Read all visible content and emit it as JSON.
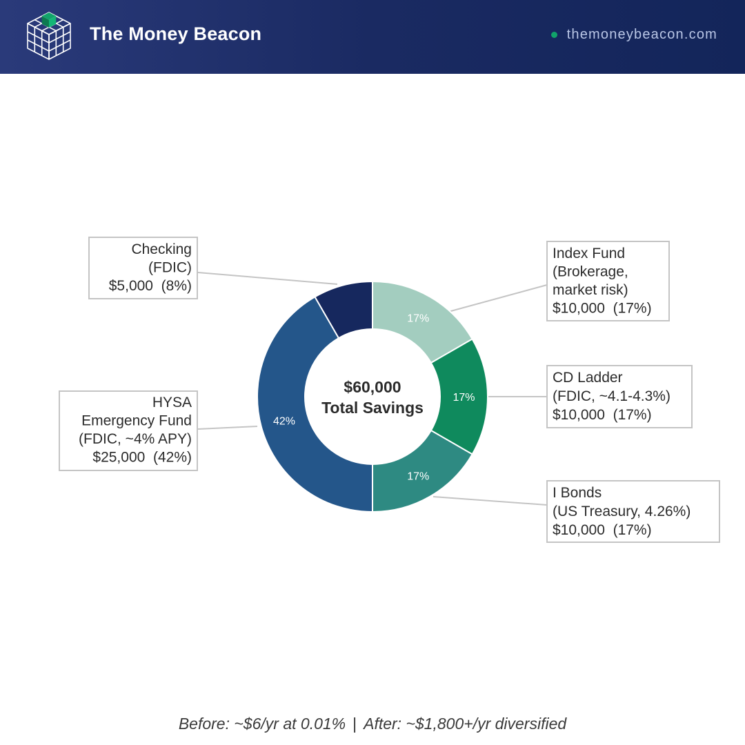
{
  "header": {
    "brand": "The Money Beacon",
    "site": "themoneybeacon.com",
    "colors": {
      "accent": "#11a36a",
      "background": "#1a2a62"
    }
  },
  "chart_data": {
    "type": "pie",
    "variant": "donut",
    "center_label": [
      "$60,000",
      "Total Savings"
    ],
    "slices": [
      {
        "id": "index-fund",
        "value": 10000,
        "percent_label": "17%",
        "color": "#a3cdbf",
        "label_lines": [
          "Index Fund",
          "(Brokerage,",
          "market risk)",
          "$10,000  (17%)"
        ],
        "label_align": "left",
        "label_side": "right"
      },
      {
        "id": "cd-ladder",
        "value": 10000,
        "percent_label": "17%",
        "color": "#0f8a5d",
        "label_lines": [
          "CD Ladder",
          "(FDIC, ~4.1-4.3%)",
          "$10,000  (17%)"
        ],
        "label_align": "left",
        "label_side": "right"
      },
      {
        "id": "i-bonds",
        "value": 10000,
        "percent_label": "17%",
        "color": "#2e8a82",
        "label_lines": [
          "I Bonds",
          "(US Treasury, 4.26%)",
          "$10,000  (17%)"
        ],
        "label_align": "left",
        "label_side": "right"
      },
      {
        "id": "hysa",
        "value": 25000,
        "percent_label": "42%",
        "color": "#24568a",
        "label_lines": [
          "HYSA",
          "Emergency Fund",
          "(FDIC, ~4% APY)",
          "$25,000  (42%)"
        ],
        "label_align": "right",
        "label_side": "left"
      },
      {
        "id": "checking",
        "value": 5000,
        "percent_label": "",
        "color": "#16285e",
        "label_lines": [
          "Checking",
          "(FDIC)",
          "$5,000  (8%)"
        ],
        "label_align": "right",
        "label_side": "left"
      }
    ]
  },
  "footer": {
    "before": "Before: ~$6/yr at 0.01%",
    "separator": "|",
    "after": "After: ~$1,800+/yr diversified"
  }
}
